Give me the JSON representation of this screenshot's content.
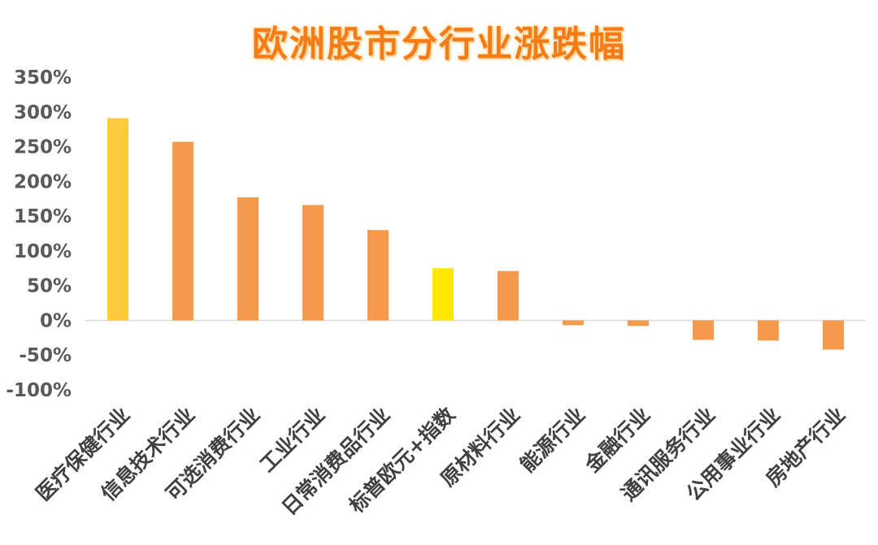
{
  "chart_data": {
    "type": "bar",
    "title": "欧洲股市分行业涨跌幅",
    "xlabel": "",
    "ylabel": "",
    "ylim": [
      -100,
      350
    ],
    "yticks": [
      350,
      300,
      250,
      200,
      150,
      100,
      50,
      0,
      -50,
      -100
    ],
    "ytick_labels": [
      "350%",
      "300%",
      "250%",
      "200%",
      "150%",
      "100%",
      "50%",
      "0%",
      "-50%",
      "-100%"
    ],
    "grid": false,
    "categories": [
      "医疗保健行业",
      "信息技术行业",
      "可选消费行业",
      "工业行业",
      "日常消费品行业",
      "标普欧元+指数",
      "原材料行业",
      "能源行业",
      "金融行业",
      "通讯服务行业",
      "公用事业行业",
      "房地产行业"
    ],
    "values": [
      291,
      257,
      177,
      166,
      130,
      75,
      71,
      -7,
      -8,
      -28,
      -29,
      -42
    ],
    "colors": [
      "#ffcb3e",
      "#f5994a",
      "#f5994a",
      "#f5994a",
      "#f5994a",
      "#ffe800",
      "#f5994a",
      "#f5994a",
      "#f5994a",
      "#f5994a",
      "#f5994a",
      "#f5994a"
    ]
  }
}
